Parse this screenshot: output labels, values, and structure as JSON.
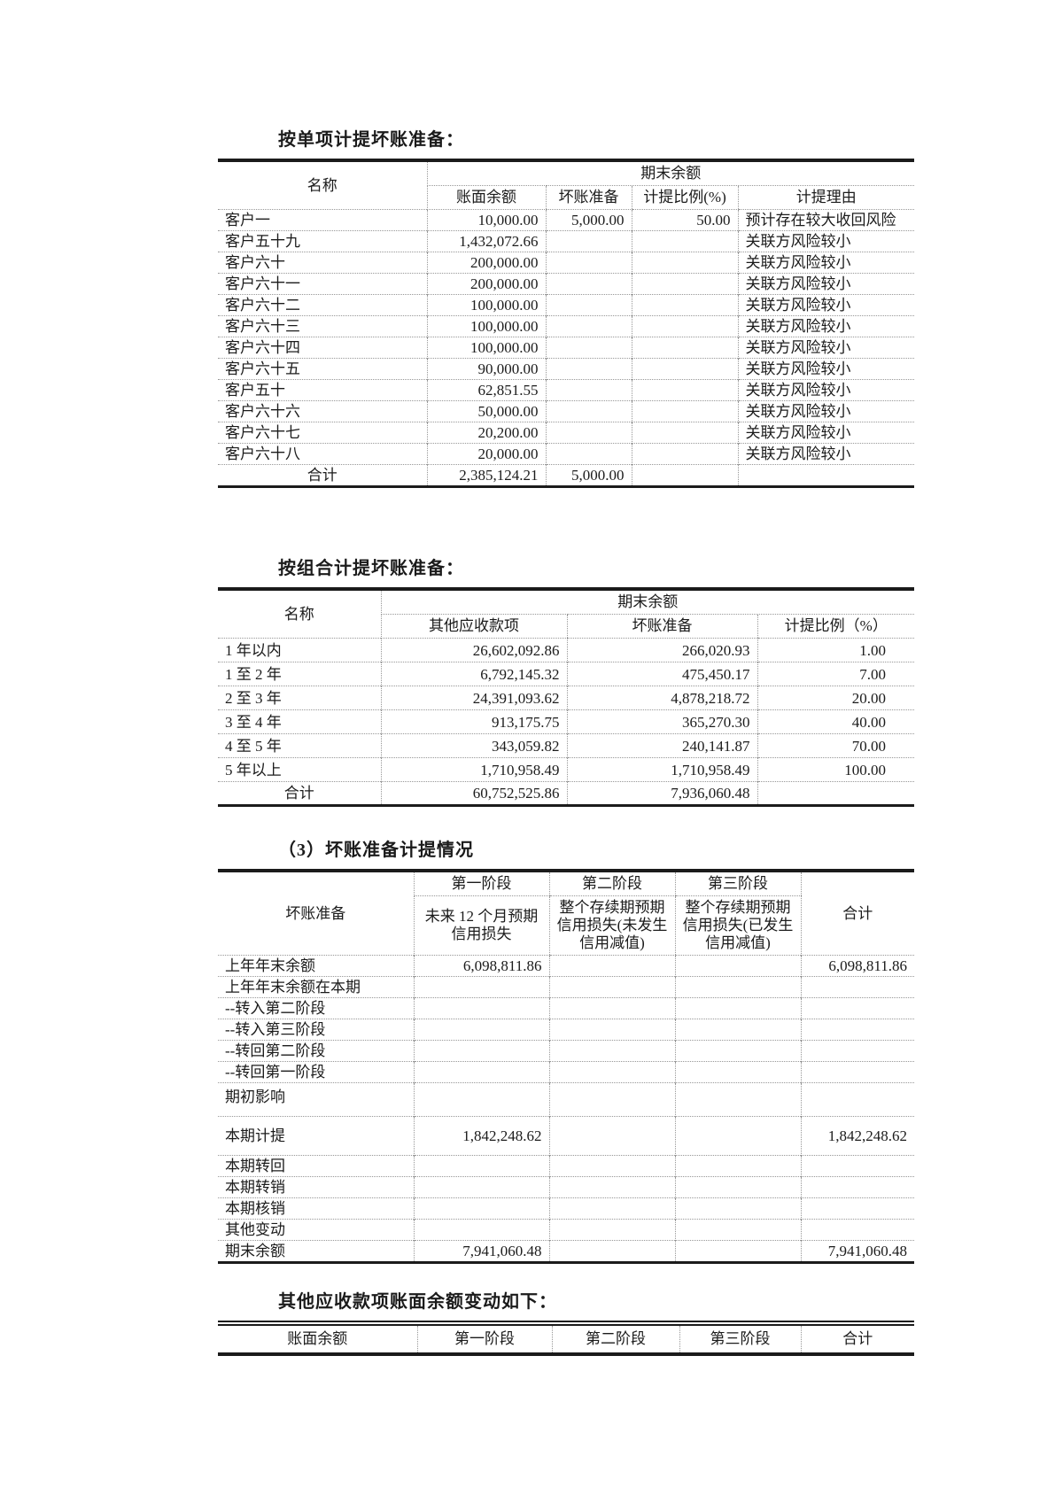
{
  "style": {
    "ink": "#1b1b1b",
    "grid_line": "#979797"
  },
  "individual": {
    "title": "按单项计提坏账准备：",
    "header": {
      "name": "名称",
      "period_end": "期末余额",
      "book_balance": "账面余额",
      "bad_debt": "坏账准备",
      "ratio": "计提比例(%)",
      "reason": "计提理由"
    },
    "rows": [
      {
        "label": "客户一",
        "balance": "10,000.00",
        "provision": "5,000.00",
        "ratio": "50.00",
        "reason": "预计存在较大收回风险"
      },
      {
        "label": "客户五十九",
        "balance": "1,432,072.66",
        "provision": "",
        "ratio": "",
        "reason": "关联方风险较小"
      },
      {
        "label": "客户六十",
        "balance": "200,000.00",
        "provision": "",
        "ratio": "",
        "reason": "关联方风险较小"
      },
      {
        "label": "客户六十一",
        "balance": "200,000.00",
        "provision": "",
        "ratio": "",
        "reason": "关联方风险较小"
      },
      {
        "label": "客户六十二",
        "balance": "100,000.00",
        "provision": "",
        "ratio": "",
        "reason": "关联方风险较小"
      },
      {
        "label": "客户六十三",
        "balance": "100,000.00",
        "provision": "",
        "ratio": "",
        "reason": "关联方风险较小"
      },
      {
        "label": "客户六十四",
        "balance": "100,000.00",
        "provision": "",
        "ratio": "",
        "reason": "关联方风险较小"
      },
      {
        "label": "客户六十五",
        "balance": "90,000.00",
        "provision": "",
        "ratio": "",
        "reason": "关联方风险较小"
      },
      {
        "label": "客户五十",
        "balance": "62,851.55",
        "provision": "",
        "ratio": "",
        "reason": "关联方风险较小"
      },
      {
        "label": "客户六十六",
        "balance": "50,000.00",
        "provision": "",
        "ratio": "",
        "reason": "关联方风险较小"
      },
      {
        "label": "客户六十七",
        "balance": "20,200.00",
        "provision": "",
        "ratio": "",
        "reason": "关联方风险较小"
      },
      {
        "label": "客户六十八",
        "balance": "20,000.00",
        "provision": "",
        "ratio": "",
        "reason": "关联方风险较小"
      },
      {
        "label": "合计",
        "balance": "2,385,124.21",
        "provision": "5,000.00",
        "ratio": "",
        "reason": "",
        "cls": "total"
      }
    ]
  },
  "portfolio": {
    "title": "按组合计提坏账准备：",
    "header": {
      "name": "名称",
      "period_end": "期末余额",
      "other_receivables": "其他应收款项",
      "bad_debt": "坏账准备",
      "ratio": "计提比例（%）"
    },
    "rows": [
      {
        "label": "1 年以内",
        "receivable": "26,602,092.86",
        "provision": "266,020.93",
        "ratio": "1.00"
      },
      {
        "label": "1 至 2 年",
        "receivable": "6,792,145.32",
        "provision": "475,450.17",
        "ratio": "7.00"
      },
      {
        "label": "2 至 3 年",
        "receivable": "24,391,093.62",
        "provision": "4,878,218.72",
        "ratio": "20.00"
      },
      {
        "label": "3 至 4 年",
        "receivable": "913,175.75",
        "provision": "365,270.30",
        "ratio": "40.00"
      },
      {
        "label": "4 至 5 年",
        "receivable": "343,059.82",
        "provision": "240,141.87",
        "ratio": "70.00"
      },
      {
        "label": "5 年以上",
        "receivable": "1,710,958.49",
        "provision": "1,710,958.49",
        "ratio": "100.00"
      },
      {
        "label": "合计",
        "receivable": "60,752,525.86",
        "provision": "7,936,060.48",
        "ratio": "",
        "cls": "total"
      }
    ]
  },
  "provision_changes": {
    "title": "（3）坏账准备计提情况",
    "header": {
      "corner": "坏账准备",
      "stage1": "第一阶段",
      "stage2": "第二阶段",
      "stage3": "第三阶段",
      "total": "合计",
      "stage1_sub": "未来 12 个月预期信用损失",
      "stage2_sub": "整个存续期预期信用损失(未发生信用减值)",
      "stage3_sub": "整个存续期预期信用损失(已发生信用减值)"
    },
    "rows": [
      {
        "label": "上年年末余额",
        "s1": "6,098,811.86",
        "s2": "",
        "s3": "",
        "total": "6,098,811.86"
      },
      {
        "label": "上年年末余额在本期",
        "s1": "",
        "s2": "",
        "s3": "",
        "total": ""
      },
      {
        "label": "--转入第二阶段",
        "s1": "",
        "s2": "",
        "s3": "",
        "total": ""
      },
      {
        "label": "--转入第三阶段",
        "s1": "",
        "s2": "",
        "s3": "",
        "total": ""
      },
      {
        "label": "--转回第二阶段",
        "s1": "",
        "s2": "",
        "s3": "",
        "total": ""
      },
      {
        "label": "--转回第一阶段",
        "s1": "",
        "s2": "",
        "s3": "",
        "total": ""
      },
      {
        "label": "期初影响",
        "s1": "",
        "s2": "",
        "s3": "",
        "total": "",
        "cls": "tall"
      },
      {
        "label": "本期计提",
        "s1": "1,842,248.62",
        "s2": "",
        "s3": "",
        "total": "1,842,248.62",
        "cls": "taller"
      },
      {
        "label": "本期转回",
        "s1": "",
        "s2": "",
        "s3": "",
        "total": ""
      },
      {
        "label": "本期转销",
        "s1": "",
        "s2": "",
        "s3": "",
        "total": ""
      },
      {
        "label": "本期核销",
        "s1": "",
        "s2": "",
        "s3": "",
        "total": ""
      },
      {
        "label": "其他变动",
        "s1": "",
        "s2": "",
        "s3": "",
        "total": ""
      },
      {
        "label": "期末余额",
        "s1": "7,941,060.48",
        "s2": "",
        "s3": "",
        "total": "7,941,060.48"
      }
    ]
  },
  "balance_changes": {
    "title": "其他应收款项账面余额变动如下：",
    "header": {
      "book_balance": "账面余额",
      "stage1": "第一阶段",
      "stage2": "第二阶段",
      "stage3": "第三阶段",
      "total": "合计"
    }
  }
}
